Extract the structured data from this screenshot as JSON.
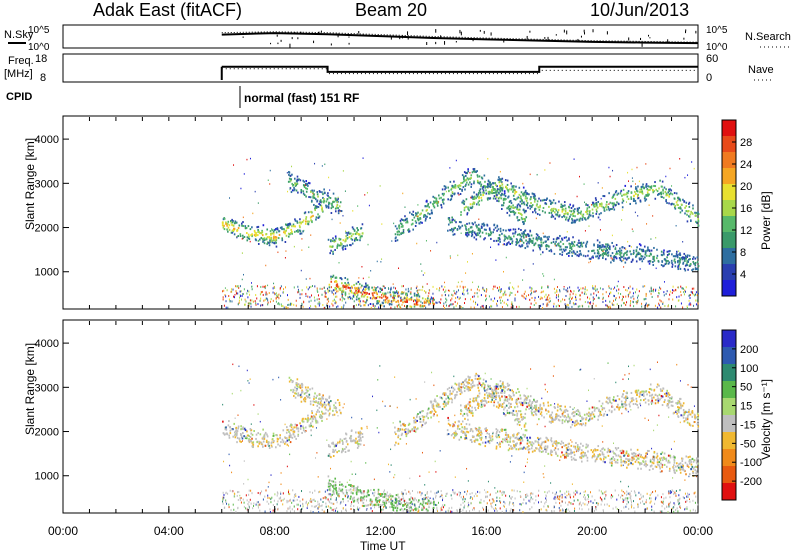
{
  "header": {
    "station": "Adak East (fitACF)",
    "beam": "Beam 20",
    "date": "10/Jun/2013"
  },
  "labels": {
    "nsky": "N.Sky",
    "nsearch": "N.Search",
    "freq": "Freq.",
    "mhz": "[MHz]",
    "nave": "Nave",
    "cpid": "CPID",
    "cpid_value": "normal (fast) 151 RF"
  },
  "colors": {
    "line": "#000000",
    "power_scale": [
      "#1f1fd9",
      "#2a3fb0",
      "#2e6ea0",
      "#3a9a6a",
      "#57b96a",
      "#a8d84a",
      "#e8e030",
      "#f5a623",
      "#f07a20",
      "#e84a1a",
      "#e01010"
    ],
    "velocity_scale": [
      "#2a2ac8",
      "#2e5ab0",
      "#2e8a70",
      "#5ab84a",
      "#a8d870",
      "#bfbfbf",
      "#f0b830",
      "#f08a1a",
      "#e85a10",
      "#e01010"
    ]
  },
  "chart_data": [
    {
      "type": "line",
      "panel": "noise",
      "left_ticks": [
        "10^5",
        "10^0"
      ],
      "right_ticks": [
        "10^5",
        "10^0"
      ],
      "x_range_hours": [
        0,
        24
      ],
      "data_start_hour": 6,
      "series": [
        {
          "name": "N.Sky",
          "x": [
            6,
            8,
            10,
            12,
            14,
            16,
            18,
            20,
            22,
            24
          ],
          "y": [
            0.6,
            0.68,
            0.62,
            0.52,
            0.42,
            0.35,
            0.28,
            0.22,
            0.18,
            0.15
          ]
        },
        {
          "name": "N.Search",
          "x": [
            6,
            8,
            10,
            12,
            14,
            16,
            18,
            20,
            22,
            24
          ],
          "y": [
            0.7,
            0.75,
            0.7,
            0.6,
            0.5,
            0.42,
            0.35,
            0.28,
            0.24,
            0.2
          ]
        }
      ]
    },
    {
      "type": "line",
      "panel": "frequency",
      "left_ticks": [
        "18",
        "8"
      ],
      "right_ticks": [
        "60",
        "0"
      ],
      "series": [
        {
          "name": "Freq.",
          "x": [
            6,
            10,
            10,
            18,
            18,
            24
          ],
          "y": [
            13.5,
            13.5,
            11.4,
            11.4,
            13.5,
            13.5
          ]
        },
        {
          "name": "Nave",
          "x": [
            6,
            10,
            10,
            18,
            18,
            24
          ],
          "y": [
            28,
            28,
            16,
            16,
            24,
            24
          ]
        }
      ]
    },
    {
      "type": "heatmap",
      "panel": "power",
      "ylabel": "Slant Range [km]",
      "y_ticks": [
        "1000",
        "2000",
        "3000",
        "4000"
      ],
      "ylim": [
        180,
        4500
      ],
      "xlim": [
        0,
        24
      ],
      "colorbar_label": "Power [dB]",
      "colorbar_ticks": [
        "4",
        "8",
        "12",
        "16",
        "20",
        "24",
        "28"
      ],
      "scatter_bands": [
        {
          "x": [
            6.0,
            7.0,
            8.0,
            9.0,
            9.8
          ],
          "y": [
            2100,
            1900,
            1800,
            2100,
            2500
          ],
          "level": 0.55
        },
        {
          "x": [
            10.0,
            10.5,
            11.0,
            11.3
          ],
          "y": [
            1600,
            1700,
            1850,
            1900
          ],
          "level": 0.4
        },
        {
          "x": [
            8.5,
            9.5,
            10.5
          ],
          "y": [
            3100,
            2750,
            2500
          ],
          "level": 0.3
        },
        {
          "x": [
            12.5,
            13.5,
            14.5,
            15.5,
            16.5,
            17.5
          ],
          "y": [
            1900,
            2300,
            2800,
            3200,
            2700,
            2200
          ],
          "level": 0.35
        },
        {
          "x": [
            15.0,
            16.5,
            18.0,
            19.5,
            21.0,
            22.5,
            24.0
          ],
          "y": [
            2400,
            3000,
            2500,
            2300,
            2700,
            2900,
            2200
          ],
          "level": 0.4
        },
        {
          "x": [
            14.5,
            16.0,
            18.0,
            20.0,
            22.0,
            24.0
          ],
          "y": [
            2100,
            1900,
            1700,
            1500,
            1400,
            1200
          ],
          "level": 0.2
        },
        {
          "x": [
            10.0,
            11.0,
            12.0,
            13.0,
            14.0
          ],
          "y": [
            800,
            600,
            450,
            350,
            260
          ],
          "level": 0.8
        }
      ]
    },
    {
      "type": "heatmap",
      "panel": "velocity",
      "ylabel": "Slant Range [km]",
      "y_ticks": [
        "1000",
        "2000",
        "3000",
        "4000"
      ],
      "ylim": [
        180,
        4500
      ],
      "xlim": [
        0,
        24
      ],
      "colorbar_label": "Velocity [m s⁻¹]",
      "colorbar_ticks": [
        "200",
        "100",
        "50",
        "15",
        "-15",
        "-50",
        "-100",
        "-200"
      ],
      "x_ticks": [
        "00:00",
        "04:00",
        "08:00",
        "12:00",
        "16:00",
        "20:00",
        "00:00"
      ],
      "x_tick_hours": [
        0,
        4,
        8,
        12,
        16,
        20,
        24
      ],
      "xlabel": "Time UT"
    }
  ]
}
